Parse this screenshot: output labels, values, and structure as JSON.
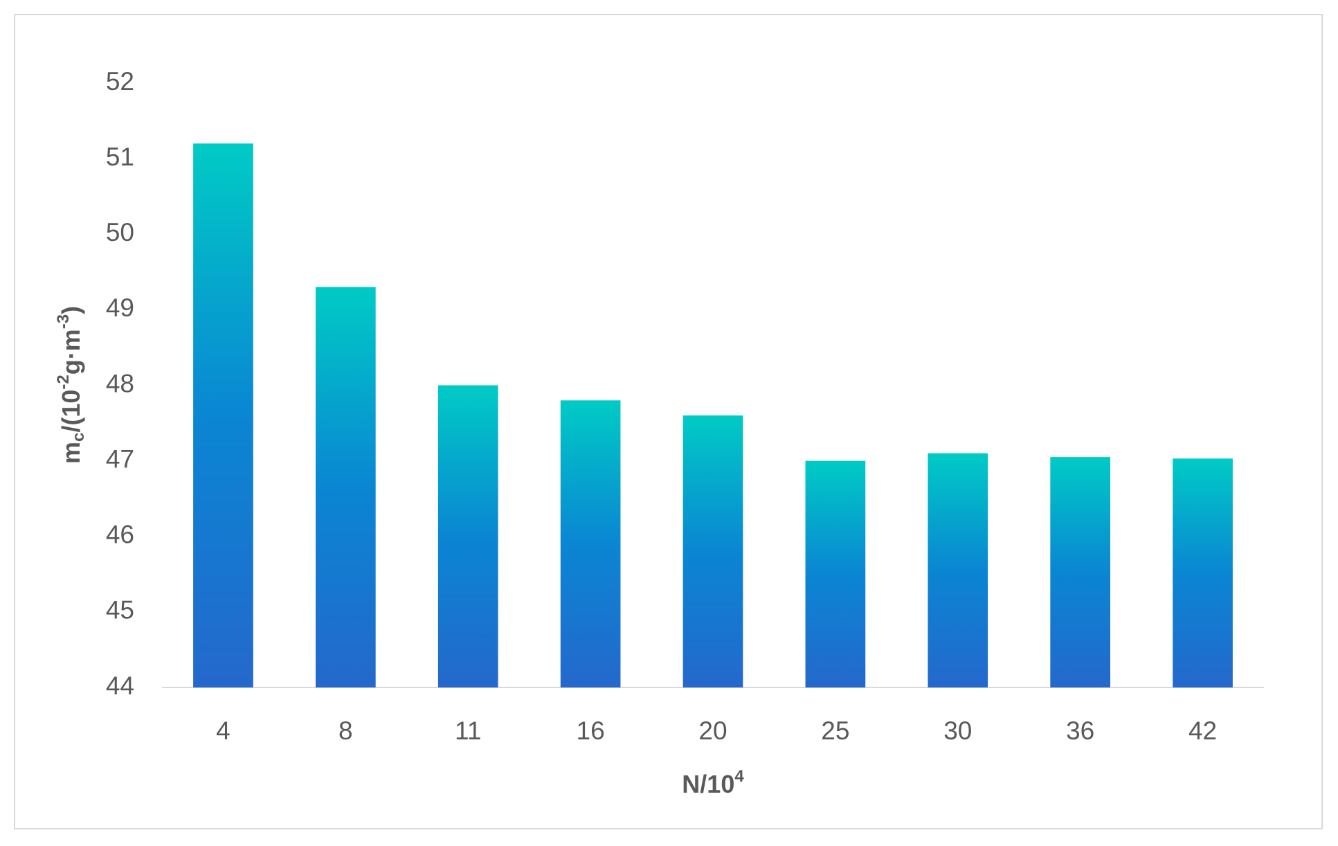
{
  "chart_data": {
    "type": "bar",
    "x_label": [
      "N/10",
      "4"
    ],
    "y_label": [
      "m",
      "c",
      "/(10",
      "-2",
      "g·m",
      "-3",
      ")"
    ],
    "categories": [
      "4",
      "8",
      "11",
      "16",
      "20",
      "25",
      "30",
      "36",
      "42"
    ],
    "values": [
      51.2,
      49.3,
      48.0,
      47.8,
      47.6,
      47.0,
      47.1,
      47.05,
      47.03
    ],
    "gradient": [
      "#00cbc5",
      "#0a86d3",
      "#2468cc"
    ],
    "ylim": [
      44,
      52
    ],
    "yticks": [
      44,
      45,
      46,
      47,
      48,
      49,
      50,
      51,
      52
    ],
    "grid": false
  }
}
